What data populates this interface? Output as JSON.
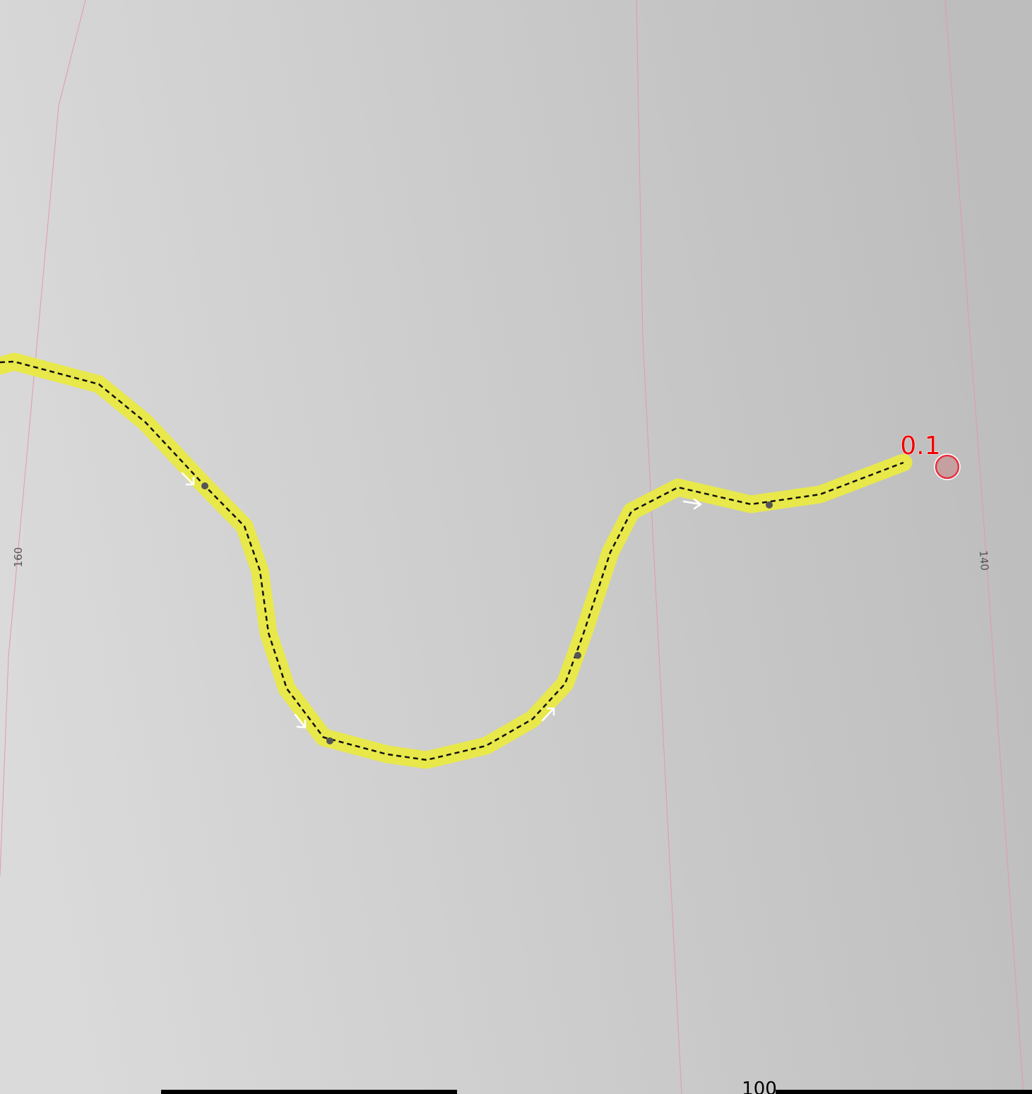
{
  "map": {
    "colors": {
      "background_left": "#dadada",
      "background_right": "#bdbdbd",
      "contour": "#e29aa8",
      "contour_label": "#555555",
      "route_casing": "#e8e84a",
      "route_dash": "#111111",
      "direction_arrow": "#ffffff",
      "waypoint": "#555555",
      "distance_marker_fill": "#c4a0a0",
      "distance_marker_stroke": "#e83040",
      "distance_label": "#ee0000",
      "scale_bar": "#000000"
    },
    "contours": [
      {
        "id": "contour-160",
        "label": "160"
      },
      {
        "id": "contour-150",
        "label": ""
      },
      {
        "id": "contour-140",
        "label": "140"
      }
    ],
    "route": {
      "name": "",
      "distance_marker_label": "0.1"
    },
    "scale_bar": {
      "label": "100"
    }
  }
}
